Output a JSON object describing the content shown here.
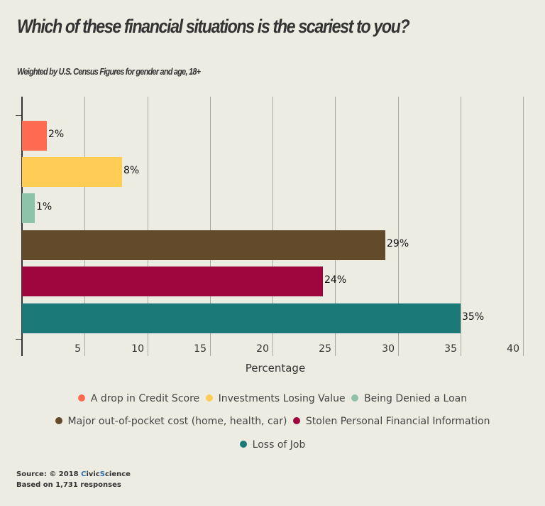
{
  "title": "Which of these financial situations is the scariest to you?",
  "subtitle": "Weighted by U.S. Census Figures for gender and age, 18+",
  "chart_data": {
    "type": "bar",
    "orientation": "horizontal",
    "title": "Which of these financial situations is the scariest to you?",
    "subtitle": "Weighted by U.S. Census Figures for gender and age, 18+",
    "xlabel": "Percentage",
    "ylabel": "",
    "xlim": [
      0,
      40
    ],
    "xticks": [
      5,
      10,
      15,
      20,
      25,
      30,
      35,
      40
    ],
    "grid": true,
    "legend_position": "bottom",
    "categories": [
      "A drop in Credit Score",
      "Investments Losing Value",
      "Being Denied a Loan",
      "Major out-of-pocket cost (home, health, car)",
      "Stolen Personal Financial Information",
      "Loss of Job"
    ],
    "values": [
      2,
      8,
      1,
      29,
      24,
      35
    ],
    "data_labels": [
      "2%",
      "8%",
      "1%",
      "29%",
      "24%",
      "35%"
    ],
    "colors": [
      "#ff6b50",
      "#ffcc55",
      "#8dc4a7",
      "#634a2b",
      "#a0063e",
      "#1b7a78"
    ]
  },
  "axis": {
    "xlabel": "Percentage",
    "ticks": [
      "5",
      "10",
      "15",
      "20",
      "25",
      "30",
      "35",
      "40"
    ]
  },
  "legend": [
    {
      "label": "A drop in Credit Score",
      "color": "#ff6b50"
    },
    {
      "label": "Investments Losing Value",
      "color": "#ffcc55"
    },
    {
      "label": "Being Denied a Loan",
      "color": "#8dc4a7"
    },
    {
      "label": "Major out-of-pocket cost (home, health, car)",
      "color": "#634a2b"
    },
    {
      "label": "Stolen Personal Financial Information",
      "color": "#a0063e"
    },
    {
      "label": "Loss of Job",
      "color": "#1b7a78"
    }
  ],
  "footer": {
    "source_prefix": "Source: © 2018 ",
    "brand_c": "C",
    "brand_ivic": "ivic",
    "brand_s": "S",
    "brand_cience": "cience",
    "responses": "Based on 1,731 responses"
  }
}
